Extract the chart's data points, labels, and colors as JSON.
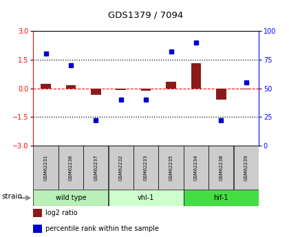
{
  "title": "GDS1379 / 7094",
  "samples": [
    "GSM62231",
    "GSM62236",
    "GSM62237",
    "GSM62232",
    "GSM62233",
    "GSM62235",
    "GSM62234",
    "GSM62238",
    "GSM62239"
  ],
  "log2_ratio": [
    0.25,
    0.15,
    -0.35,
    -0.08,
    -0.12,
    0.35,
    1.3,
    -0.6,
    -0.05
  ],
  "percentile_rank": [
    80,
    70,
    22,
    40,
    40,
    82,
    90,
    22,
    55
  ],
  "groups": [
    {
      "label": "wild type",
      "indices": [
        0,
        1,
        2
      ],
      "color": "#b8f0b8"
    },
    {
      "label": "vhl-1",
      "indices": [
        3,
        4,
        5
      ],
      "color": "#ccffcc"
    },
    {
      "label": "hif-1",
      "indices": [
        6,
        7,
        8
      ],
      "color": "#44dd44"
    }
  ],
  "bar_color": "#8B1A1A",
  "dot_color": "#0000cc",
  "dashed_line_color": "#ff0000",
  "ylim": [
    -3,
    3
  ],
  "y2lim": [
    0,
    100
  ],
  "yticks": [
    -3,
    -1.5,
    0,
    1.5,
    3
  ],
  "y2ticks": [
    0,
    25,
    50,
    75,
    100
  ],
  "dotted_lines": [
    -1.5,
    1.5
  ],
  "legend_items": [
    {
      "label": "log2 ratio",
      "color": "#8B1A1A"
    },
    {
      "label": "percentile rank within the sample",
      "color": "#0000cc"
    }
  ],
  "sample_box_color": "#cccccc",
  "bg_color": "#ffffff"
}
